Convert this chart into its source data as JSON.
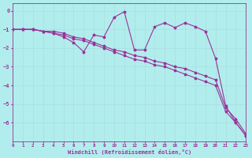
{
  "xlabel": "Windchill (Refroidissement éolien,°C)",
  "background_color": "#b2eded",
  "grid_color": "#c0e8e8",
  "line_color": "#993399",
  "xlim": [
    0,
    23
  ],
  "ylim": [
    -7.0,
    0.4
  ],
  "xticks": [
    0,
    1,
    2,
    3,
    4,
    5,
    6,
    7,
    8,
    9,
    10,
    11,
    12,
    13,
    14,
    15,
    16,
    17,
    18,
    19,
    20,
    21,
    22,
    23
  ],
  "yticks": [
    0,
    -1,
    -2,
    -3,
    -4,
    -5,
    -6
  ],
  "line1_y": [
    -1.0,
    -1.0,
    -1.0,
    -1.1,
    -1.1,
    -1.2,
    -1.4,
    -1.5,
    -1.7,
    -1.9,
    -2.1,
    -2.2,
    -2.4,
    -2.5,
    -2.7,
    -2.8,
    -3.0,
    -3.1,
    -3.3,
    -3.5,
    -3.7,
    -5.2,
    -5.8,
    -6.6
  ],
  "line2_y": [
    -1.0,
    -1.0,
    -1.0,
    -1.1,
    -1.2,
    -1.3,
    -1.5,
    -1.6,
    -1.8,
    -2.0,
    -2.2,
    -2.4,
    -2.6,
    -2.7,
    -2.9,
    -3.0,
    -3.2,
    -3.4,
    -3.6,
    -3.8,
    -4.0,
    -5.4,
    -6.0,
    -6.7
  ],
  "line3_y": [
    -1.0,
    -1.0,
    -1.0,
    -1.1,
    -1.2,
    -1.4,
    -1.7,
    -2.2,
    -1.3,
    -1.4,
    -0.35,
    -0.05,
    -2.1,
    -2.1,
    -0.85,
    -0.65,
    -0.9,
    -0.65,
    -0.85,
    -1.1,
    -2.55,
    -5.1,
    -6.0,
    -6.7
  ],
  "marker": "*",
  "markersize": 2.5,
  "linewidth": 0.8
}
